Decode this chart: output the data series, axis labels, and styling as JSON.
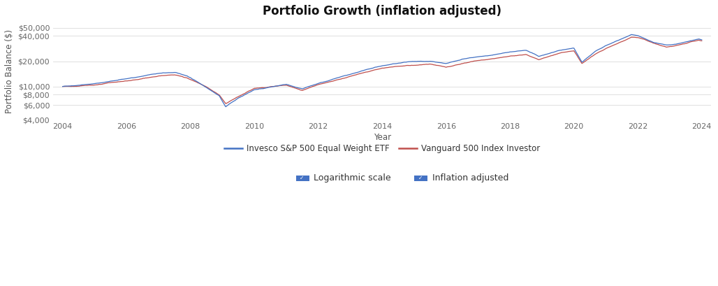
{
  "title": "Portfolio Growth (inflation adjusted)",
  "xlabel": "Year",
  "ylabel": "Portfolio Balance ($)",
  "x_ticks": [
    2004,
    2006,
    2008,
    2010,
    2012,
    2014,
    2016,
    2018,
    2020,
    2022,
    2024
  ],
  "y_log_ticks": [
    4000,
    6000,
    8000,
    10000,
    20000,
    40000,
    50000
  ],
  "y_log_labels": [
    "$4,000",
    "$6,000",
    "$8,000",
    "$10,000",
    "$20,000",
    "$40,000",
    "$50,000"
  ],
  "ylim": [
    4000,
    58000
  ],
  "xlim": [
    2003.7,
    2024.3
  ],
  "blue_color": "#4472c4",
  "red_color": "#c0504d",
  "bg_color": "#ffffff",
  "grid_color": "#e0e0e0",
  "legend1": "Invesco S&P 500 Equal Weight ETF",
  "legend2": "Vanguard 500 Index Investor",
  "checkbox1": "Logarithmic scale",
  "checkbox2": "Inflation adjusted",
  "title_fontsize": 12,
  "axis_label_fontsize": 8.5,
  "tick_fontsize": 8,
  "legend_fontsize": 8.5,
  "checkbox_fontsize": 9
}
